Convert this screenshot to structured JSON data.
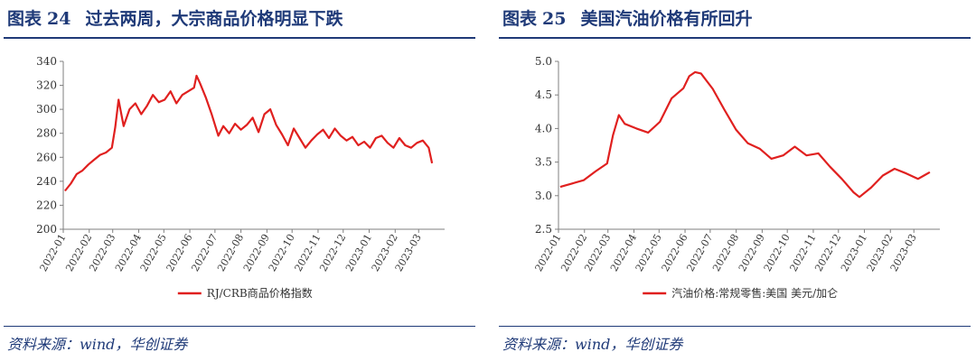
{
  "panels": [
    {
      "fig_label": "图表",
      "fig_number": "24",
      "title": "过去两周，大宗商品价格明显下跌",
      "source": "资料来源：wind，华创证券"
    },
    {
      "fig_label": "图表",
      "fig_number": "25",
      "title": "美国汽油价格有所回升",
      "source": "资料来源：wind，华创证券"
    }
  ],
  "chart_data": [
    {
      "type": "line",
      "title": "过去两周，大宗商品价格明显下跌",
      "xlabel": "",
      "ylabel": "",
      "ylim": [
        200,
        340
      ],
      "yticks": [
        "200",
        "220",
        "240",
        "260",
        "280",
        "300",
        "320",
        "340"
      ],
      "xticks": [
        "2022-01",
        "2022-02",
        "2022-03",
        "2022-04",
        "2022-05",
        "2022-06",
        "2022-07",
        "2022-08",
        "2022-09",
        "2022-10",
        "2022-11",
        "2022-12",
        "2023-01",
        "2023-02",
        "2023-03"
      ],
      "grid": false,
      "legend": "bottom",
      "color": "#e0201f",
      "series": [
        {
          "name": "RJ/CRB商品价格指数",
          "x": [
            "2022-01-03",
            "2022-01-10",
            "2022-01-17",
            "2022-01-24",
            "2022-01-31",
            "2022-02-07",
            "2022-02-14",
            "2022-02-21",
            "2022-02-28",
            "2022-03-04",
            "2022-03-08",
            "2022-03-14",
            "2022-03-21",
            "2022-03-28",
            "2022-04-04",
            "2022-04-11",
            "2022-04-18",
            "2022-04-25",
            "2022-05-02",
            "2022-05-09",
            "2022-05-16",
            "2022-05-23",
            "2022-05-30",
            "2022-06-06",
            "2022-06-09",
            "2022-06-13",
            "2022-06-20",
            "2022-06-27",
            "2022-07-05",
            "2022-07-11",
            "2022-07-18",
            "2022-07-25",
            "2022-08-01",
            "2022-08-08",
            "2022-08-15",
            "2022-08-22",
            "2022-08-29",
            "2022-09-05",
            "2022-09-12",
            "2022-09-19",
            "2022-09-26",
            "2022-10-03",
            "2022-10-10",
            "2022-10-17",
            "2022-10-24",
            "2022-10-31",
            "2022-11-07",
            "2022-11-14",
            "2022-11-21",
            "2022-11-28",
            "2022-12-05",
            "2022-12-12",
            "2022-12-19",
            "2022-12-26",
            "2023-01-02",
            "2023-01-09",
            "2023-01-16",
            "2023-01-23",
            "2023-01-30",
            "2023-02-06",
            "2023-02-13",
            "2023-02-20",
            "2023-02-27",
            "2023-03-06",
            "2023-03-13",
            "2023-03-17"
          ],
          "values": [
            232,
            238,
            246,
            249,
            254,
            258,
            262,
            264,
            268,
            285,
            308,
            286,
            300,
            305,
            296,
            303,
            312,
            306,
            308,
            315,
            305,
            312,
            315,
            318,
            328,
            322,
            310,
            296,
            278,
            286,
            280,
            288,
            283,
            287,
            293,
            281,
            296,
            300,
            287,
            279,
            270,
            284,
            276,
            268,
            274,
            279,
            283,
            276,
            284,
            278,
            274,
            277,
            270,
            273,
            268,
            276,
            278,
            272,
            268,
            276,
            270,
            268,
            272,
            274,
            268,
            255
          ]
        }
      ]
    },
    {
      "type": "line",
      "title": "美国汽油价格有所回升",
      "xlabel": "",
      "ylabel": "",
      "ylim": [
        2.5,
        5.0
      ],
      "yticks": [
        "2.5",
        "3.0",
        "3.5",
        "4.0",
        "4.5",
        "5.0"
      ],
      "xticks": [
        "2022-01",
        "2022-02",
        "2022-03",
        "2022-04",
        "2022-05",
        "2022-06",
        "2022-07",
        "2022-08",
        "2022-09",
        "2022-10",
        "2022-11",
        "2022-12",
        "2023-01",
        "2023-02",
        "2023-03"
      ],
      "grid": false,
      "legend": "bottom",
      "color": "#e0201f",
      "series": [
        {
          "name": "汽油价格:常规零售:美国 美元/加仑",
          "x": [
            "2022-01-03",
            "2022-01-17",
            "2022-01-31",
            "2022-02-14",
            "2022-02-28",
            "2022-03-07",
            "2022-03-14",
            "2022-03-21",
            "2022-04-04",
            "2022-04-18",
            "2022-05-02",
            "2022-05-16",
            "2022-05-30",
            "2022-06-06",
            "2022-06-13",
            "2022-06-20",
            "2022-07-04",
            "2022-07-18",
            "2022-08-01",
            "2022-08-15",
            "2022-08-29",
            "2022-09-12",
            "2022-09-26",
            "2022-10-10",
            "2022-10-24",
            "2022-11-07",
            "2022-11-21",
            "2022-12-05",
            "2022-12-19",
            "2022-12-26",
            "2023-01-09",
            "2023-01-23",
            "2023-02-06",
            "2023-02-20",
            "2023-03-06",
            "2023-03-13",
            "2023-03-20"
          ],
          "values": [
            3.13,
            3.18,
            3.23,
            3.36,
            3.48,
            3.9,
            4.2,
            4.07,
            4.0,
            3.94,
            4.1,
            4.45,
            4.6,
            4.78,
            4.84,
            4.82,
            4.59,
            4.28,
            3.98,
            3.78,
            3.7,
            3.55,
            3.6,
            3.73,
            3.6,
            3.63,
            3.43,
            3.25,
            3.05,
            2.98,
            3.12,
            3.3,
            3.4,
            3.33,
            3.25,
            3.3,
            3.35
          ]
        }
      ]
    }
  ]
}
